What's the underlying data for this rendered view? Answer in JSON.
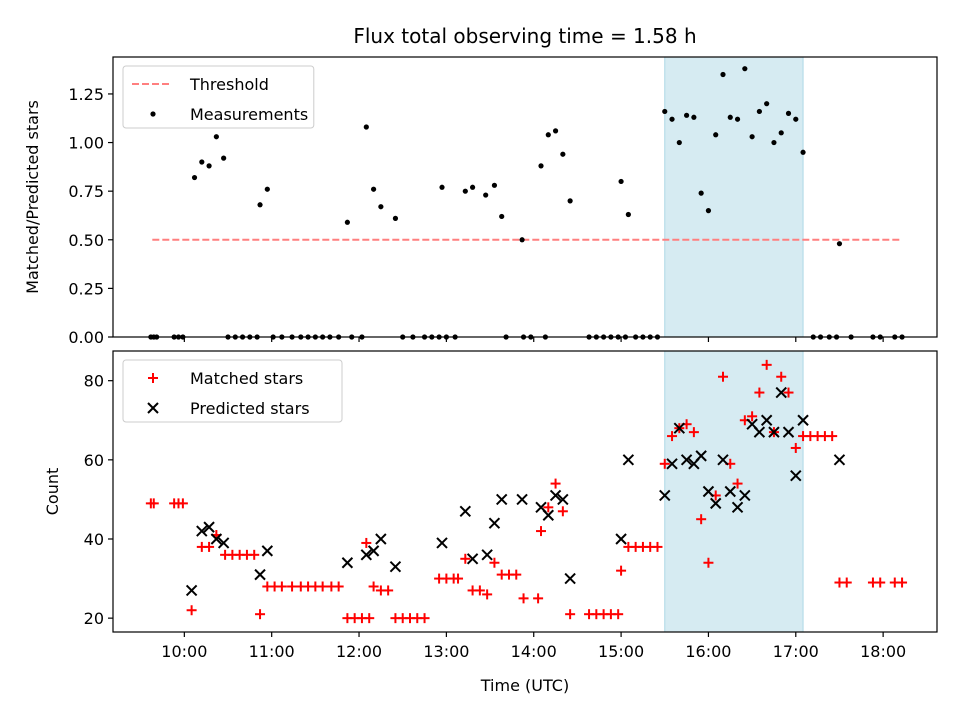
{
  "chart_data": [
    {
      "type": "scatter",
      "title": "Flux total observing time = 1.58 h",
      "xlabel": "",
      "ylabel": "Matched/Predicted stars",
      "ylim": [
        0,
        1.44
      ],
      "yticks": [
        "0.00",
        "0.25",
        "0.50",
        "0.75",
        "1.00",
        "1.25"
      ],
      "xticks": [
        "10:00",
        "11:00",
        "12:00",
        "13:00",
        "14:00",
        "15:00",
        "16:00",
        "17:00",
        "18:00"
      ],
      "shaded_span": [
        "15:30",
        "17:05"
      ],
      "legend": {
        "position": "top-left",
        "entries": [
          "Threshold",
          "Measurements"
        ]
      },
      "series": [
        {
          "name": "Threshold",
          "style": "dashed-line",
          "color": "#ff7f7f",
          "points": [
            [
              "09:38",
              0.5
            ],
            [
              "18:13",
              0.5
            ]
          ]
        },
        {
          "name": "Measurements",
          "style": "dot",
          "color": "#000000",
          "points": [
            [
              "09:37",
              0
            ],
            [
              "09:39",
              0
            ],
            [
              "09:41",
              0
            ],
            [
              "09:53",
              0
            ],
            [
              "09:56",
              0
            ],
            [
              "09:59",
              0
            ],
            [
              "10:07",
              0.82
            ],
            [
              "10:12",
              0.9
            ],
            [
              "10:17",
              0.88
            ],
            [
              "10:22",
              1.03
            ],
            [
              "10:27",
              0.92
            ],
            [
              "10:30",
              0
            ],
            [
              "10:35",
              0
            ],
            [
              "10:40",
              0
            ],
            [
              "10:45",
              0
            ],
            [
              "10:50",
              0
            ],
            [
              "10:52",
              0.68
            ],
            [
              "10:57",
              0.76
            ],
            [
              "11:01",
              0
            ],
            [
              "11:07",
              0
            ],
            [
              "11:14",
              0
            ],
            [
              "11:20",
              0
            ],
            [
              "11:25",
              0
            ],
            [
              "11:30",
              0
            ],
            [
              "11:35",
              0
            ],
            [
              "11:40",
              0
            ],
            [
              "11:46",
              0
            ],
            [
              "11:52",
              0.59
            ],
            [
              "11:55",
              0
            ],
            [
              "12:02",
              0
            ],
            [
              "12:05",
              1.08
            ],
            [
              "12:10",
              0.76
            ],
            [
              "12:15",
              0.67
            ],
            [
              "12:25",
              0.61
            ],
            [
              "12:30",
              0
            ],
            [
              "12:37",
              0
            ],
            [
              "12:45",
              0
            ],
            [
              "12:50",
              0
            ],
            [
              "12:55",
              0
            ],
            [
              "13:00",
              0
            ],
            [
              "13:06",
              0
            ],
            [
              "12:57",
              0.77
            ],
            [
              "13:13",
              0.75
            ],
            [
              "13:18",
              0.77
            ],
            [
              "13:27",
              0.73
            ],
            [
              "13:33",
              0.78
            ],
            [
              "13:38",
              0.62
            ],
            [
              "13:41",
              0
            ],
            [
              "13:53",
              0
            ],
            [
              "13:58",
              0
            ],
            [
              "14:08",
              0
            ],
            [
              "13:52",
              0.5
            ],
            [
              "14:05",
              0.88
            ],
            [
              "14:10",
              1.04
            ],
            [
              "14:15",
              1.06
            ],
            [
              "14:20",
              0.94
            ],
            [
              "14:25",
              0.7
            ],
            [
              "14:38",
              0
            ],
            [
              "14:43",
              0
            ],
            [
              "14:48",
              0
            ],
            [
              "14:53",
              0
            ],
            [
              "14:58",
              0
            ],
            [
              "15:03",
              0
            ],
            [
              "15:10",
              0
            ],
            [
              "15:15",
              0
            ],
            [
              "15:20",
              0
            ],
            [
              "15:25",
              0
            ],
            [
              "15:00",
              0.8
            ],
            [
              "15:05",
              0.63
            ],
            [
              "15:30",
              1.16
            ],
            [
              "15:35",
              1.12
            ],
            [
              "15:40",
              1.0
            ],
            [
              "15:45",
              1.14
            ],
            [
              "15:50",
              1.13
            ],
            [
              "15:55",
              0.74
            ],
            [
              "16:00",
              0.65
            ],
            [
              "16:05",
              1.04
            ],
            [
              "16:10",
              1.35
            ],
            [
              "16:15",
              1.13
            ],
            [
              "16:20",
              1.12
            ],
            [
              "16:25",
              1.38
            ],
            [
              "16:30",
              1.03
            ],
            [
              "16:35",
              1.16
            ],
            [
              "16:40",
              1.2
            ],
            [
              "16:45",
              1.0
            ],
            [
              "16:50",
              1.05
            ],
            [
              "16:55",
              1.15
            ],
            [
              "17:00",
              1.12
            ],
            [
              "17:05",
              0.95
            ],
            [
              "17:12",
              0
            ],
            [
              "17:17",
              0
            ],
            [
              "17:23",
              0
            ],
            [
              "17:28",
              0
            ],
            [
              "17:30",
              0.48
            ],
            [
              "17:38",
              0
            ],
            [
              "17:53",
              0
            ],
            [
              "17:58",
              0
            ],
            [
              "18:08",
              0
            ],
            [
              "18:13",
              0
            ]
          ]
        }
      ]
    },
    {
      "type": "scatter",
      "title": "",
      "xlabel": "Time (UTC)",
      "ylabel": "Count",
      "ylim": [
        16.5,
        87.5
      ],
      "yticks": [
        "20",
        "40",
        "60",
        "80"
      ],
      "xticks": [
        "10:00",
        "11:00",
        "12:00",
        "13:00",
        "14:00",
        "15:00",
        "16:00",
        "17:00",
        "18:00"
      ],
      "shaded_span": [
        "15:30",
        "17:05"
      ],
      "legend": {
        "position": "top-left",
        "entries": [
          "Matched stars",
          "Predicted stars"
        ]
      },
      "series": [
        {
          "name": "Matched stars",
          "style": "plus",
          "color": "#ff0000",
          "points": [
            [
              "09:37",
              49
            ],
            [
              "09:39",
              49
            ],
            [
              "09:53",
              49
            ],
            [
              "09:56",
              49
            ],
            [
              "09:59",
              49
            ],
            [
              "10:05",
              22
            ],
            [
              "10:12",
              38
            ],
            [
              "10:17",
              38
            ],
            [
              "10:22",
              41
            ],
            [
              "10:28",
              36
            ],
            [
              "10:33",
              36
            ],
            [
              "10:38",
              36
            ],
            [
              "10:43",
              36
            ],
            [
              "10:48",
              36
            ],
            [
              "10:52",
              21
            ],
            [
              "10:57",
              28
            ],
            [
              "11:02",
              28
            ],
            [
              "11:07",
              28
            ],
            [
              "11:14",
              28
            ],
            [
              "11:20",
              28
            ],
            [
              "11:25",
              28
            ],
            [
              "11:30",
              28
            ],
            [
              "11:35",
              28
            ],
            [
              "11:41",
              28
            ],
            [
              "11:46",
              28
            ],
            [
              "11:52",
              20
            ],
            [
              "11:57",
              20
            ],
            [
              "12:02",
              20
            ],
            [
              "12:07",
              20
            ],
            [
              "12:05",
              39
            ],
            [
              "12:10",
              28
            ],
            [
              "12:15",
              27
            ],
            [
              "12:20",
              27
            ],
            [
              "12:25",
              20
            ],
            [
              "12:30",
              20
            ],
            [
              "12:35",
              20
            ],
            [
              "12:40",
              20
            ],
            [
              "12:45",
              20
            ],
            [
              "12:55",
              30
            ],
            [
              "13:00",
              30
            ],
            [
              "13:05",
              30
            ],
            [
              "13:08",
              30
            ],
            [
              "13:13",
              35
            ],
            [
              "13:18",
              27
            ],
            [
              "13:23",
              27
            ],
            [
              "13:28",
              26
            ],
            [
              "13:33",
              34
            ],
            [
              "13:38",
              31
            ],
            [
              "13:43",
              31
            ],
            [
              "13:48",
              31
            ],
            [
              "13:53",
              25
            ],
            [
              "14:03",
              25
            ],
            [
              "14:05",
              42
            ],
            [
              "14:10",
              48
            ],
            [
              "14:15",
              54
            ],
            [
              "14:20",
              47
            ],
            [
              "14:25",
              21
            ],
            [
              "14:38",
              21
            ],
            [
              "14:43",
              21
            ],
            [
              "14:48",
              21
            ],
            [
              "14:53",
              21
            ],
            [
              "14:58",
              21
            ],
            [
              "15:00",
              32
            ],
            [
              "15:05",
              38
            ],
            [
              "15:10",
              38
            ],
            [
              "15:15",
              38
            ],
            [
              "15:20",
              38
            ],
            [
              "15:25",
              38
            ],
            [
              "15:30",
              59
            ],
            [
              "15:35",
              66
            ],
            [
              "15:40",
              68
            ],
            [
              "15:45",
              69
            ],
            [
              "15:50",
              67
            ],
            [
              "15:55",
              45
            ],
            [
              "16:00",
              34
            ],
            [
              "16:05",
              51
            ],
            [
              "16:10",
              81
            ],
            [
              "16:15",
              59
            ],
            [
              "16:20",
              54
            ],
            [
              "16:25",
              70
            ],
            [
              "16:30",
              71
            ],
            [
              "16:35",
              77
            ],
            [
              "16:40",
              84
            ],
            [
              "16:45",
              67
            ],
            [
              "16:50",
              81
            ],
            [
              "16:55",
              77
            ],
            [
              "17:00",
              63
            ],
            [
              "17:05",
              66
            ],
            [
              "17:10",
              66
            ],
            [
              "17:15",
              66
            ],
            [
              "17:20",
              66
            ],
            [
              "17:25",
              66
            ],
            [
              "17:30",
              29
            ],
            [
              "17:35",
              29
            ],
            [
              "17:53",
              29
            ],
            [
              "17:58",
              29
            ],
            [
              "18:08",
              29
            ],
            [
              "18:13",
              29
            ]
          ]
        },
        {
          "name": "Predicted stars",
          "style": "cross",
          "color": "#000000",
          "points": [
            [
              "10:05",
              27
            ],
            [
              "10:12",
              42
            ],
            [
              "10:17",
              43
            ],
            [
              "10:22",
              40
            ],
            [
              "10:27",
              39
            ],
            [
              "10:52",
              31
            ],
            [
              "10:57",
              37
            ],
            [
              "11:52",
              34
            ],
            [
              "12:05",
              36
            ],
            [
              "12:10",
              37
            ],
            [
              "12:15",
              40
            ],
            [
              "12:25",
              33
            ],
            [
              "12:57",
              39
            ],
            [
              "13:13",
              47
            ],
            [
              "13:18",
              35
            ],
            [
              "13:28",
              36
            ],
            [
              "13:33",
              44
            ],
            [
              "13:38",
              50
            ],
            [
              "13:52",
              50
            ],
            [
              "14:05",
              48
            ],
            [
              "14:10",
              46
            ],
            [
              "14:15",
              51
            ],
            [
              "14:20",
              50
            ],
            [
              "14:25",
              30
            ],
            [
              "15:00",
              40
            ],
            [
              "15:05",
              60
            ],
            [
              "15:30",
              51
            ],
            [
              "15:35",
              59
            ],
            [
              "15:40",
              68
            ],
            [
              "15:45",
              60
            ],
            [
              "15:50",
              59
            ],
            [
              "15:55",
              61
            ],
            [
              "16:00",
              52
            ],
            [
              "16:05",
              49
            ],
            [
              "16:10",
              60
            ],
            [
              "16:15",
              52
            ],
            [
              "16:20",
              48
            ],
            [
              "16:25",
              51
            ],
            [
              "16:30",
              69
            ],
            [
              "16:35",
              67
            ],
            [
              "16:40",
              70
            ],
            [
              "16:45",
              67
            ],
            [
              "16:50",
              77
            ],
            [
              "16:55",
              67
            ],
            [
              "17:00",
              56
            ],
            [
              "17:05",
              70
            ],
            [
              "17:30",
              60
            ]
          ]
        }
      ]
    }
  ]
}
